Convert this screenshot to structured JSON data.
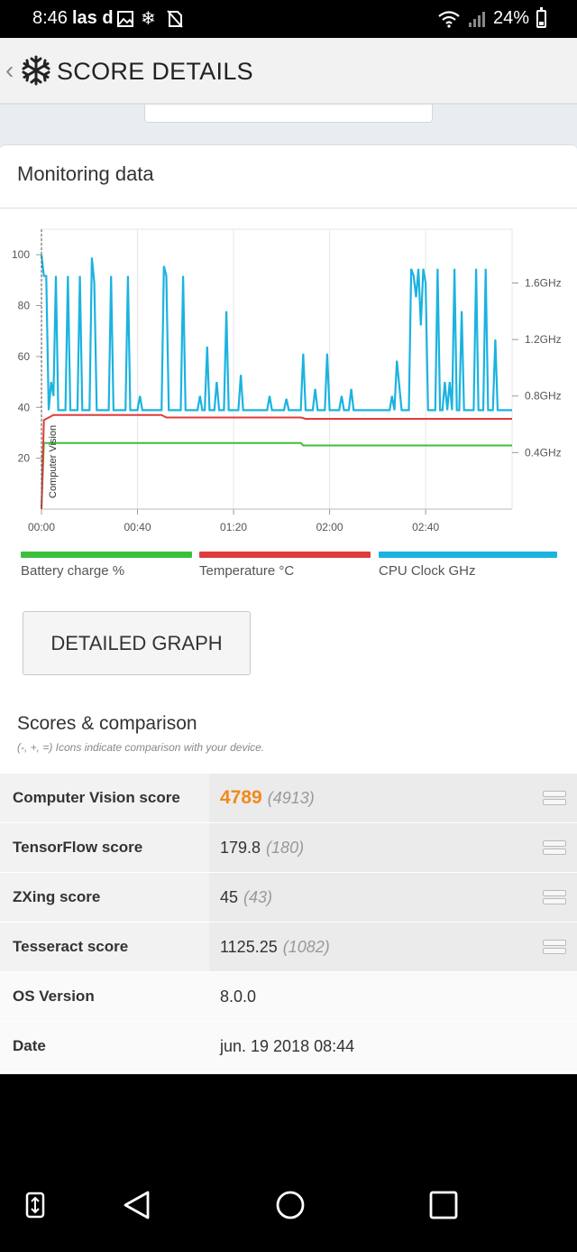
{
  "status": {
    "time": "8:46",
    "notif_text": "las d",
    "battery_percent": "24%"
  },
  "header": {
    "title": "SCORE DETAILS"
  },
  "monitoring": {
    "title": "Monitoring data",
    "button_label": "DETAILED GRAPH",
    "legend": [
      {
        "label": "Battery charge %",
        "color": "#3cbf3c"
      },
      {
        "label": "Temperature °C",
        "color": "#e03c3c"
      },
      {
        "label": "CPU Clock GHz",
        "color": "#1bb3e0"
      }
    ]
  },
  "chart_data": {
    "type": "line",
    "x_ticks": [
      "00:00",
      "00:40",
      "01:20",
      "02:00",
      "02:40"
    ],
    "x_range": [
      0,
      196
    ],
    "y_left": {
      "ticks": [
        20,
        40,
        60,
        80,
        100
      ],
      "range": [
        0,
        110
      ]
    },
    "y_right": {
      "ticks": [
        "0.4GHz",
        "0.8GHz",
        "1.2GHz",
        "1.6GHz"
      ],
      "tick_values": [
        0.4,
        0.8,
        1.2,
        1.6
      ],
      "range": [
        0,
        1.98
      ]
    },
    "marker": {
      "label": "Computer Vision",
      "x": 0
    },
    "series": [
      {
        "name": "Battery charge %",
        "color": "#3cbf3c",
        "axis": "left",
        "points": [
          [
            0,
            0
          ],
          [
            1,
            26
          ],
          [
            108,
            26
          ],
          [
            109,
            25
          ],
          [
            196,
            25
          ]
        ]
      },
      {
        "name": "Temperature °C",
        "color": "#e03c3c",
        "axis": "left",
        "points": [
          [
            0,
            0
          ],
          [
            1,
            35
          ],
          [
            5,
            37
          ],
          [
            50,
            37
          ],
          [
            52,
            36
          ],
          [
            108,
            36
          ],
          [
            110,
            35.5
          ],
          [
            196,
            35.5
          ]
        ]
      },
      {
        "name": "CPU Clock GHz",
        "color": "#1bb3e0",
        "axis": "right",
        "points": [
          [
            0,
            1.8
          ],
          [
            1,
            1.65
          ],
          [
            2,
            1.65
          ],
          [
            3,
            0.7
          ],
          [
            4,
            0.9
          ],
          [
            5,
            0.8
          ],
          [
            6,
            1.65
          ],
          [
            7,
            0.7
          ],
          [
            10,
            0.7
          ],
          [
            11,
            1.65
          ],
          [
            12,
            0.7
          ],
          [
            15,
            0.7
          ],
          [
            16,
            1.65
          ],
          [
            17,
            0.7
          ],
          [
            20,
            0.7
          ],
          [
            21,
            1.78
          ],
          [
            22,
            1.6
          ],
          [
            23,
            0.7
          ],
          [
            28,
            0.7
          ],
          [
            29,
            1.65
          ],
          [
            30,
            0.7
          ],
          [
            35,
            0.7
          ],
          [
            36,
            1.65
          ],
          [
            37,
            0.7
          ],
          [
            40,
            0.7
          ],
          [
            41,
            0.8
          ],
          [
            42,
            0.7
          ],
          [
            50,
            0.7
          ],
          [
            51,
            1.72
          ],
          [
            52,
            1.65
          ],
          [
            53,
            0.7
          ],
          [
            58,
            0.7
          ],
          [
            59,
            1.65
          ],
          [
            60,
            0.7
          ],
          [
            65,
            0.7
          ],
          [
            66,
            0.8
          ],
          [
            67,
            0.7
          ],
          [
            68,
            0.7
          ],
          [
            69,
            1.15
          ],
          [
            70,
            0.7
          ],
          [
            72,
            0.7
          ],
          [
            73,
            0.9
          ],
          [
            74,
            0.7
          ],
          [
            76,
            0.7
          ],
          [
            77,
            1.4
          ],
          [
            78,
            0.7
          ],
          [
            82,
            0.7
          ],
          [
            83,
            0.95
          ],
          [
            84,
            0.7
          ],
          [
            94,
            0.7
          ],
          [
            95,
            0.8
          ],
          [
            96,
            0.7
          ],
          [
            101,
            0.7
          ],
          [
            102,
            0.78
          ],
          [
            103,
            0.7
          ],
          [
            108,
            0.7
          ],
          [
            109,
            1.1
          ],
          [
            110,
            0.7
          ],
          [
            113,
            0.7
          ],
          [
            114,
            0.85
          ],
          [
            115,
            0.7
          ],
          [
            118,
            0.7
          ],
          [
            119,
            1.1
          ],
          [
            120,
            0.7
          ],
          [
            124,
            0.7
          ],
          [
            125,
            0.8
          ],
          [
            126,
            0.7
          ],
          [
            128,
            0.7
          ],
          [
            129,
            0.85
          ],
          [
            130,
            0.7
          ],
          [
            145,
            0.7
          ],
          [
            146,
            0.8
          ],
          [
            147,
            0.7
          ],
          [
            148,
            1.05
          ],
          [
            150,
            0.7
          ],
          [
            153,
            0.7
          ],
          [
            154,
            1.7
          ],
          [
            155,
            1.65
          ],
          [
            156,
            1.5
          ],
          [
            157,
            1.7
          ],
          [
            158,
            1.3
          ],
          [
            159,
            1.7
          ],
          [
            160,
            1.6
          ],
          [
            161,
            0.7
          ],
          [
            164,
            0.7
          ],
          [
            165,
            1.7
          ],
          [
            166,
            0.7
          ],
          [
            167,
            0.7
          ],
          [
            168,
            0.9
          ],
          [
            169,
            0.7
          ],
          [
            170,
            0.9
          ],
          [
            171,
            0.7
          ],
          [
            172,
            1.7
          ],
          [
            173,
            0.7
          ],
          [
            174,
            0.7
          ],
          [
            175,
            1.4
          ],
          [
            176,
            0.7
          ],
          [
            180,
            0.7
          ],
          [
            181,
            1.7
          ],
          [
            182,
            0.7
          ],
          [
            184,
            0.7
          ],
          [
            185,
            1.7
          ],
          [
            186,
            0.7
          ],
          [
            188,
            0.7
          ],
          [
            189,
            1.2
          ],
          [
            190,
            0.7
          ],
          [
            196,
            0.7
          ]
        ]
      }
    ]
  },
  "scores": {
    "title": "Scores & comparison",
    "subtitle": "(-, +, =) Icons indicate comparison with your device.",
    "rows": [
      {
        "name": "Computer Vision score",
        "value": "4789",
        "ref": "(4913)"
      },
      {
        "name": "TensorFlow score",
        "value": "179.8",
        "ref": "(180)"
      },
      {
        "name": "ZXing score",
        "value": "45",
        "ref": "(43)"
      },
      {
        "name": "Tesseract score",
        "value": "1125.25",
        "ref": "(1082)"
      },
      {
        "name": "OS Version",
        "value": "8.0.0"
      },
      {
        "name": "Date",
        "value": "jun. 19 2018 08:44"
      }
    ]
  }
}
